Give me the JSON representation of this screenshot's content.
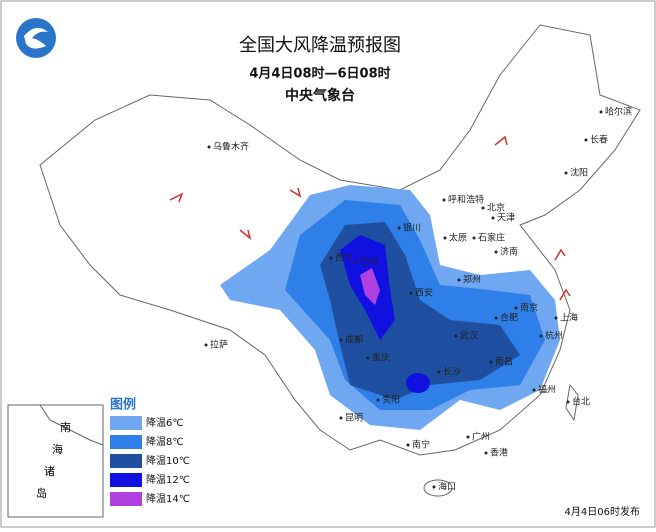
{
  "header": {
    "title": "全国大风降温预报图",
    "subtitle": "4月4日08时—6日08时",
    "issuer": "中央气象台"
  },
  "legend": {
    "title": "图例",
    "items": [
      "降温6℃",
      "降温8℃",
      "降温10℃",
      "降温12℃",
      "降温14℃"
    ]
  },
  "cities": [
    "乌鲁木齐",
    "呼和浩特",
    "北京",
    "天津",
    "石家庄",
    "太原",
    "济南",
    "郑州",
    "西安",
    "银川",
    "兰州",
    "西宁",
    "拉萨",
    "成都",
    "重庆",
    "贵阳",
    "昆明",
    "南宁",
    "长沙",
    "南昌",
    "武汉",
    "合肥",
    "南京",
    "上海",
    "杭州",
    "福州",
    "台北",
    "广州",
    "香港",
    "海口",
    "沈阳",
    "长春",
    "哈尔滨"
  ],
  "inset": {
    "labels": [
      "南",
      "海",
      "诸",
      "岛"
    ]
  },
  "footer": "4月4日06时发布"
}
